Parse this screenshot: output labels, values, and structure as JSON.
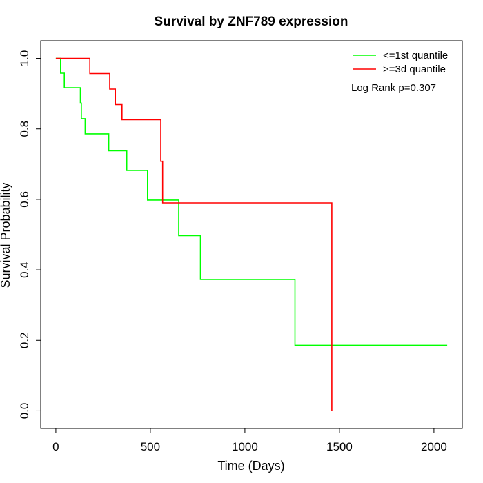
{
  "chart_data": {
    "type": "line",
    "step": true,
    "title": "Survival by ZNF789 expression",
    "xlabel": "Time (Days)",
    "ylabel": "Survival Probability",
    "xlim": [
      -80,
      2150
    ],
    "ylim": [
      -0.05,
      1.05
    ],
    "xticks": [
      0,
      500,
      1000,
      1500,
      2000
    ],
    "xtick_labels": [
      "0",
      "500",
      "1000",
      "1500",
      "2000"
    ],
    "yticks": [
      0.0,
      0.2,
      0.4,
      0.6,
      0.8,
      1.0
    ],
    "ytick_labels": [
      "0.0",
      "0.2",
      "0.4",
      "0.6",
      "0.8",
      "1.0"
    ],
    "grid": false,
    "legend_position": "top-right",
    "annotation": "Log Rank p=0.307",
    "series": [
      {
        "name": "<=1st quantile",
        "color": "#00ff00",
        "x": [
          0,
          25,
          25,
          45,
          45,
          130,
          130,
          135,
          135,
          155,
          155,
          280,
          280,
          375,
          375,
          485,
          485,
          650,
          650,
          765,
          765,
          1265,
          1265,
          2070
        ],
        "y": [
          1.0,
          1.0,
          0.958,
          0.958,
          0.917,
          0.917,
          0.873,
          0.873,
          0.829,
          0.829,
          0.786,
          0.786,
          0.738,
          0.738,
          0.682,
          0.682,
          0.598,
          0.598,
          0.497,
          0.497,
          0.373,
          0.373,
          0.186,
          0.186
        ]
      },
      {
        "name": ">=3d quantile",
        "color": "#ff0000",
        "x": [
          0,
          180,
          180,
          285,
          285,
          315,
          315,
          350,
          350,
          555,
          555,
          565,
          565,
          1460,
          1460
        ],
        "y": [
          1.0,
          1.0,
          0.957,
          0.957,
          0.913,
          0.913,
          0.869,
          0.869,
          0.826,
          0.826,
          0.708,
          0.708,
          0.59,
          0.59,
          0.0
        ]
      }
    ]
  }
}
